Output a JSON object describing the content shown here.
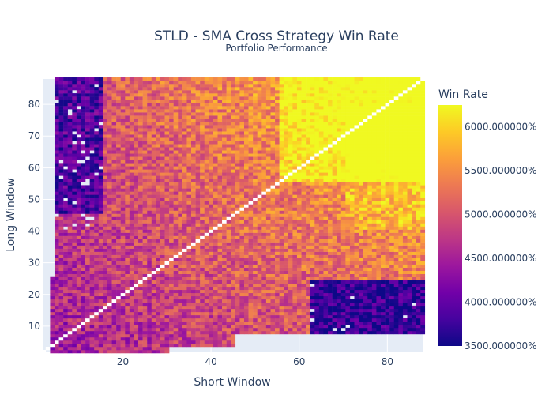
{
  "chart_data": {
    "type": "heatmap",
    "title": "STLD - SMA Cross Strategy Win Rate",
    "subtitle": "Portfolio Performance",
    "xlabel": "Short Window",
    "ylabel": "Long Window",
    "colorbar_title": "Win Rate",
    "x_range": [
      2,
      88
    ],
    "y_range": [
      2,
      88
    ],
    "x_ticks": [
      20,
      40,
      60,
      80
    ],
    "y_ticks": [
      10,
      20,
      30,
      40,
      50,
      60,
      70,
      80
    ],
    "z_range": [
      3500,
      6250
    ],
    "colorbar_ticks": [
      {
        "value": 3500,
        "label": "3500.000000%"
      },
      {
        "value": 4000,
        "label": "4000.000000%"
      },
      {
        "value": 4500,
        "label": "4500.000000%"
      },
      {
        "value": 5000,
        "label": "5000.000000%"
      },
      {
        "value": 5500,
        "label": "5500.000000%"
      },
      {
        "value": 6000,
        "label": "6000.000000%"
      }
    ],
    "colorscale": [
      "#0d0887",
      "#46039f",
      "#7201a8",
      "#9c179e",
      "#bd3786",
      "#d8576b",
      "#ed7953",
      "#fb9f3a",
      "#fdca26",
      "#f0f921"
    ],
    "missing_color": "#e5ecf6",
    "diagonal_color": "#ffffff",
    "grid": true
  }
}
